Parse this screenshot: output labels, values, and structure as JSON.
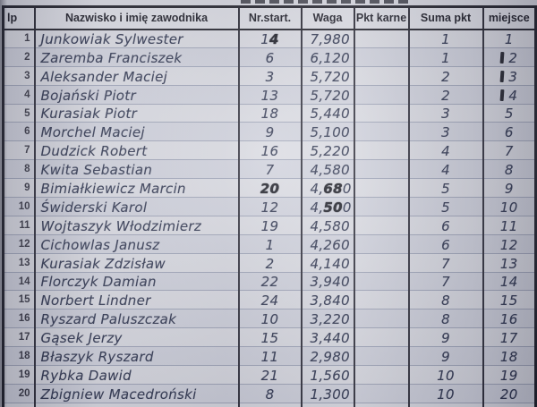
{
  "table": {
    "headers": [
      "lp",
      "Nazwisko i imię zawodnika",
      "Nr.start.",
      "Waga",
      "Pkt karne",
      "Suma pkt",
      "miejsce"
    ],
    "rows": [
      {
        "lp": "1",
        "name": "Junkowiak Sylwester",
        "nr": "14",
        "waga": "7,980",
        "pkt_karne": "",
        "suma": "1",
        "miejsce": "1",
        "nr_bold_from": 1
      },
      {
        "lp": "2",
        "name": "Zaremba Franciszek",
        "nr": "6",
        "waga": "6,120",
        "pkt_karne": "",
        "suma": "1",
        "miejsce": "2",
        "miejsce_mark": true
      },
      {
        "lp": "3",
        "name": "Aleksander Maciej",
        "nr": "3",
        "waga": "5,720",
        "pkt_karne": "",
        "suma": "2",
        "miejsce": "3",
        "miejsce_mark": true
      },
      {
        "lp": "4",
        "name": "Bojański Piotr",
        "nr": "13",
        "waga": "5,720",
        "pkt_karne": "",
        "suma": "2",
        "miejsce": "4",
        "miejsce_mark": true
      },
      {
        "lp": "5",
        "name": "Kurasiak Piotr",
        "nr": "18",
        "waga": "5,440",
        "pkt_karne": "",
        "suma": "3",
        "miejsce": "5"
      },
      {
        "lp": "6",
        "name": "Morchel Maciej",
        "nr": "9",
        "waga": "5,100",
        "pkt_karne": "",
        "suma": "3",
        "miejsce": "6"
      },
      {
        "lp": "7",
        "name": "Dudzick Robert",
        "nr": "16",
        "waga": "5,220",
        "pkt_karne": "",
        "suma": "4",
        "miejsce": "7"
      },
      {
        "lp": "8",
        "name": "Kwita Sebastian",
        "nr": "7",
        "waga": "4,580",
        "pkt_karne": "",
        "suma": "4",
        "miejsce": "8"
      },
      {
        "lp": "9",
        "name": "Bimiałkiewicz Marcin",
        "nr": "20",
        "waga": "4,680",
        "pkt_karne": "",
        "suma": "5",
        "miejsce": "9",
        "nr_bold_from": 0,
        "waga_bold_from": 2,
        "waga_bold_to": 4
      },
      {
        "lp": "10",
        "name": "Świderski Karol",
        "nr": "12",
        "waga": "4,500",
        "pkt_karne": "",
        "suma": "5",
        "miejsce": "10",
        "waga_bold_from": 2,
        "waga_bold_to": 4
      },
      {
        "lp": "11",
        "name": "Wojtaszyk Włodzimierz",
        "nr": "19",
        "waga": "4,580",
        "pkt_karne": "",
        "suma": "6",
        "miejsce": "11"
      },
      {
        "lp": "12",
        "name": "Cichowlas Janusz",
        "nr": "1",
        "waga": "4,260",
        "pkt_karne": "",
        "suma": "6",
        "miejsce": "12"
      },
      {
        "lp": "13",
        "name": "Kurasiak Zdzisław",
        "nr": "2",
        "waga": "4,140",
        "pkt_karne": "",
        "suma": "7",
        "miejsce": "13"
      },
      {
        "lp": "14",
        "name": "Florczyk Damian",
        "nr": "22",
        "waga": "3,940",
        "pkt_karne": "",
        "suma": "7",
        "miejsce": "14"
      },
      {
        "lp": "15",
        "name": "Norbert Lindner",
        "nr": "24",
        "waga": "3,840",
        "pkt_karne": "",
        "suma": "8",
        "miejsce": "15"
      },
      {
        "lp": "16",
        "name": "Ryszard Paluszczak",
        "nr": "10",
        "waga": "3,220",
        "pkt_karne": "",
        "suma": "8",
        "miejsce": "16"
      },
      {
        "lp": "17",
        "name": "Gąsek Jerzy",
        "nr": "15",
        "waga": "3,440",
        "pkt_karne": "",
        "suma": "9",
        "miejsce": "17"
      },
      {
        "lp": "18",
        "name": "Błaszyk Ryszard",
        "nr": "11",
        "waga": "2,980",
        "pkt_karne": "",
        "suma": "9",
        "miejsce": "18"
      },
      {
        "lp": "19",
        "name": "Rybka Dawid",
        "nr": "21",
        "waga": "1,560",
        "pkt_karne": "",
        "suma": "10",
        "miejsce": "19"
      },
      {
        "lp": "20",
        "name": "Zbigniew Macedroński",
        "nr": "8",
        "waga": "1,300",
        "pkt_karne": "",
        "suma": "10",
        "miejsce": "20"
      }
    ]
  },
  "colors": {
    "paper": "#dcdde4",
    "ink": "#252c47",
    "ink_bold": "#0c0d16",
    "grid_line": "#9da3b7",
    "frame": "#14141d"
  }
}
